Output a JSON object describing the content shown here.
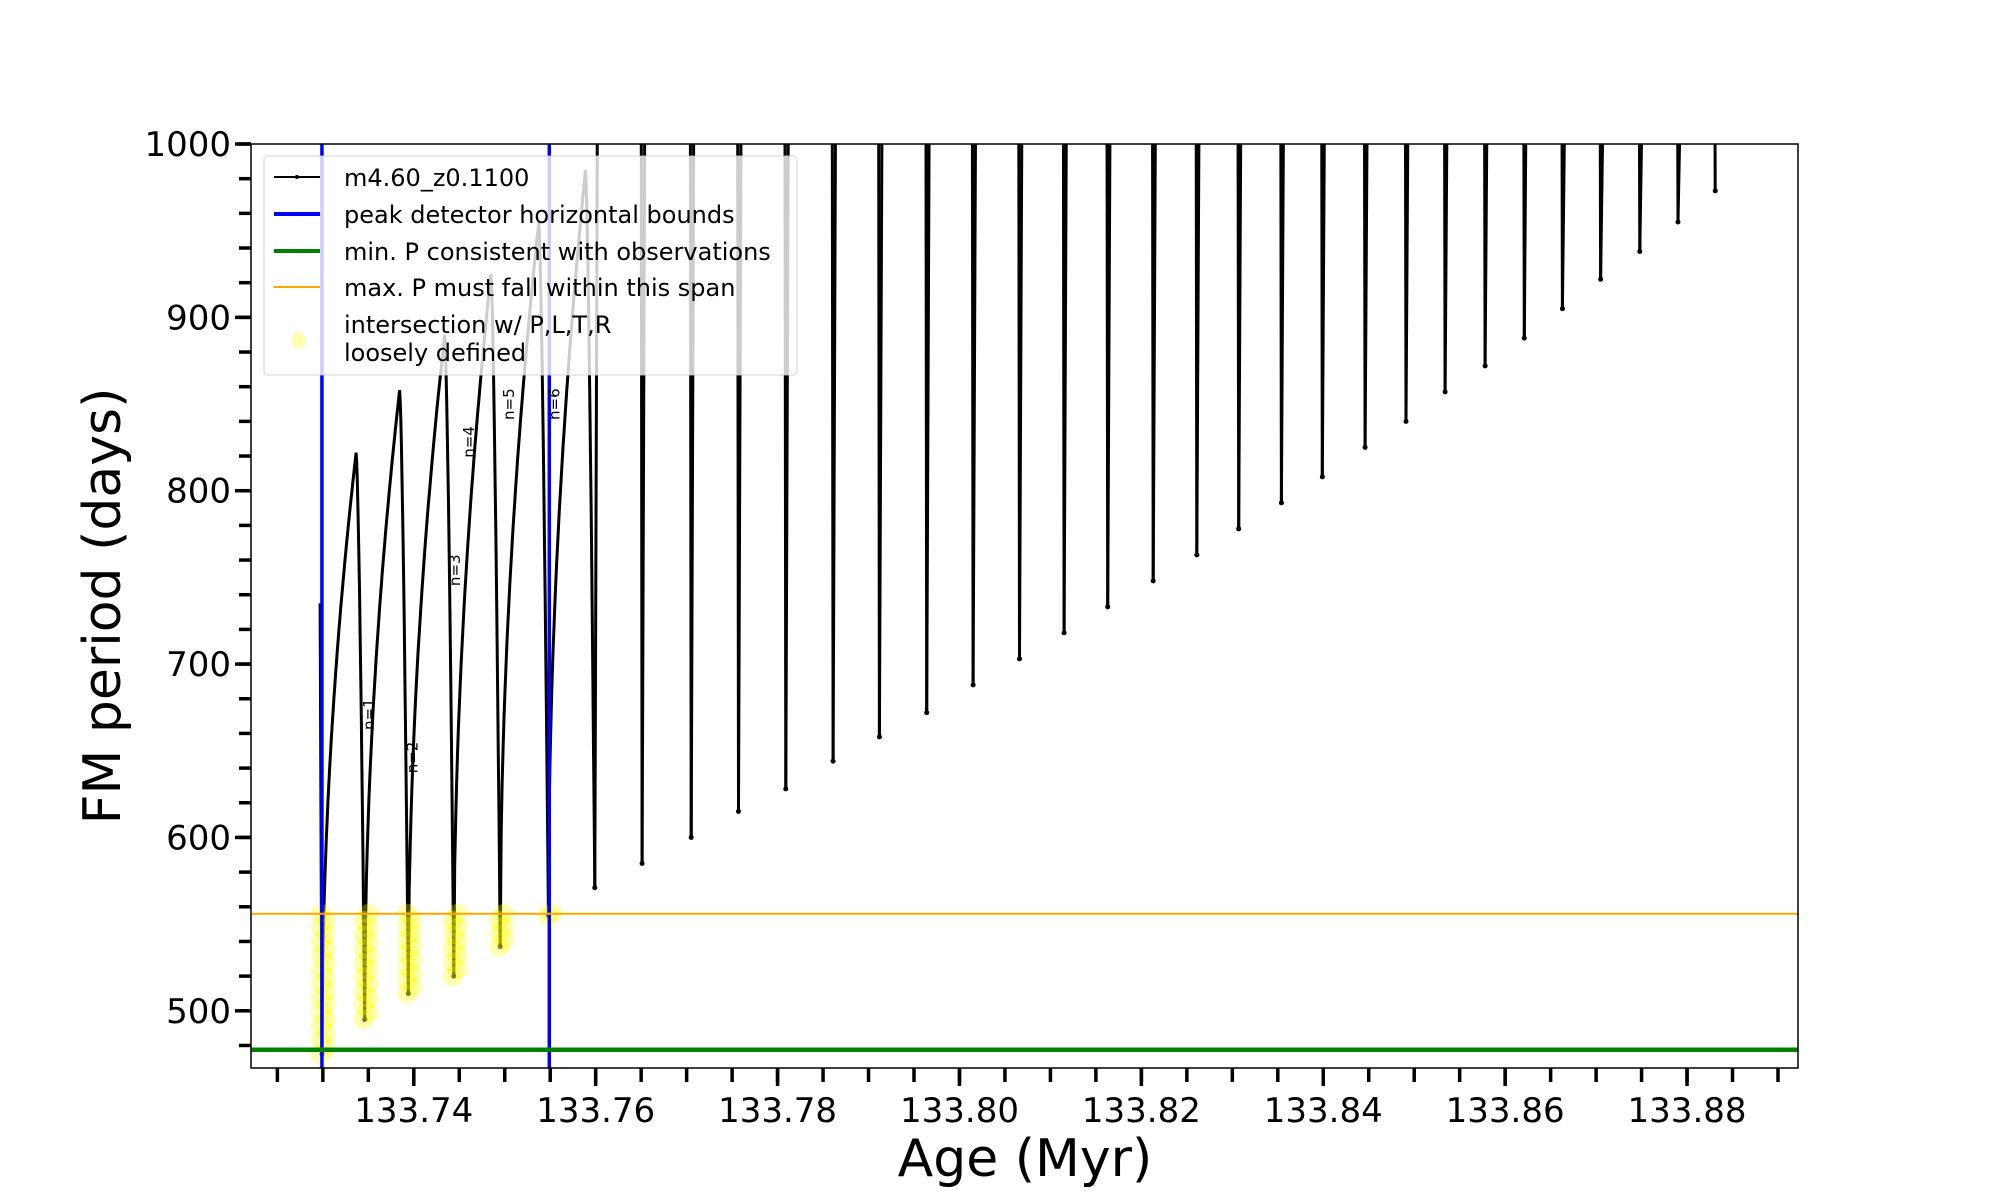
{
  "chart_data": {
    "type": "line",
    "title": "",
    "xlabel": "Age (Myr)",
    "ylabel": "FM period (days)",
    "xlim": [
      133.7221,
      133.8922
    ],
    "ylim": [
      467,
      1000
    ],
    "xticks": [
      "133.74",
      "133.76",
      "133.78",
      "133.80",
      "133.82",
      "133.84",
      "133.86",
      "133.88"
    ],
    "xtick_values": [
      133.74,
      133.76,
      133.78,
      133.8,
      133.82,
      133.84,
      133.86,
      133.88
    ],
    "x_minor_step": 0.005,
    "yticks": [
      "500",
      "600",
      "700",
      "800",
      "900",
      "1000"
    ],
    "ytick_values": [
      500,
      600,
      700,
      800,
      900,
      1000
    ],
    "y_minor_step": 20,
    "grid": false,
    "legend_placement": "top-left",
    "series": [
      {
        "name": "m4.60_z0.1100",
        "color": "#000000",
        "start": {
          "age": 133.7297,
          "period": 735
        },
        "minima_age": [
          133.7299,
          133.7346,
          133.7394,
          133.7444,
          133.7495,
          133.7548,
          133.7599,
          133.7651,
          133.7705,
          133.7757,
          133.7809,
          133.7861,
          133.7912,
          133.7964,
          133.8015,
          133.8066,
          133.8115,
          133.8163,
          133.8213,
          133.8261,
          133.8307,
          133.8354,
          133.8399,
          133.8446,
          133.8491,
          133.8534,
          133.8578,
          133.8621,
          133.8663,
          133.8705,
          133.8748,
          133.879,
          133.8831
        ],
        "minima_period": [
          475,
          495,
          510,
          520,
          537,
          555,
          571,
          585,
          600,
          615,
          628,
          644,
          658,
          672,
          688,
          703,
          718,
          733,
          748,
          763,
          778,
          793,
          808,
          825,
          840,
          857,
          872,
          888,
          905,
          922,
          938,
          955,
          973
        ],
        "peaks_period": [
          822,
          858,
          890,
          925,
          955,
          985
        ]
      }
    ],
    "reference_lines": {
      "blue": {
        "label": "peak detector horizontal bounds",
        "color": "#0000ff",
        "x": [
          133.7299,
          133.7549
        ]
      },
      "green": {
        "label": "min. P consistent with observations",
        "color": "#008000",
        "y": 477.5
      },
      "orange": {
        "label": "max. P must fall within this span",
        "color": "#ffa500",
        "y": 556
      }
    },
    "intersections": {
      "label": "intersection w/ P,L,T,R\nloosely defined",
      "label_line1": "intersection w/ P,L,T,R",
      "label_line2": "loosely defined",
      "color": "#ffff00",
      "ranges": [
        {
          "age": 133.7299,
          "period_min": 475,
          "period_max": 556
        },
        {
          "age": 133.7346,
          "period_min": 495,
          "period_max": 556
        },
        {
          "age": 133.7394,
          "period_min": 510,
          "period_max": 556
        },
        {
          "age": 133.7444,
          "period_min": 520,
          "period_max": 556
        },
        {
          "age": 133.7495,
          "period_min": 537,
          "period_max": 556
        },
        {
          "age": 133.7548,
          "period_min": 555,
          "period_max": 556
        }
      ]
    },
    "annotations": [
      {
        "text": "n=1",
        "age": 133.7356,
        "period": 662
      },
      {
        "text": "n=2",
        "age": 133.7404,
        "period": 637
      },
      {
        "text": "n=3",
        "age": 133.7451,
        "period": 745
      },
      {
        "text": "n=4",
        "age": 133.7466,
        "period": 819
      },
      {
        "text": "n=5",
        "age": 133.751,
        "period": 894
      },
      {
        "text": "n=6",
        "age": 133.756,
        "period": 961
      }
    ]
  }
}
